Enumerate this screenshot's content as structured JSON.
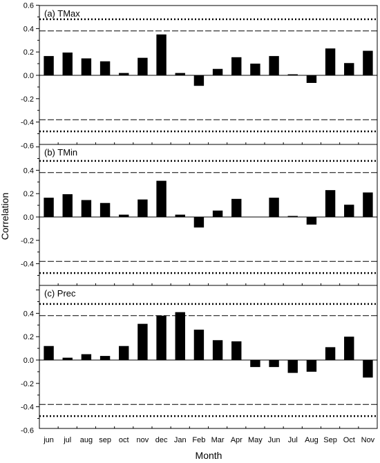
{
  "chart_data": [
    {
      "type": "bar",
      "title": "(a) TMax",
      "categories": [
        "jun",
        "jul",
        "aug",
        "sep",
        "oct",
        "nov",
        "dec",
        "Jan",
        "Feb",
        "Mar",
        "Apr",
        "May",
        "Jun",
        "Jul",
        "Aug",
        "Sep",
        "Oct",
        "Nov"
      ],
      "values": [
        0.165,
        0.195,
        0.145,
        0.12,
        0.02,
        0.15,
        0.35,
        0.02,
        -0.09,
        0.055,
        0.155,
        0.1,
        0.165,
        0.005,
        -0.065,
        0.23,
        0.105,
        0.21
      ],
      "ylim": [
        -0.6,
        0.6
      ],
      "yticks": [
        "-0.6",
        "-0.4",
        "-0.2",
        "0.0",
        "0.2",
        "0.4",
        "0.6"
      ],
      "reference_lines": {
        "dashed": [
          0.38,
          -0.38
        ],
        "dotted": [
          0.48,
          -0.48
        ]
      }
    },
    {
      "type": "bar",
      "title": "(b) TMin",
      "categories": [
        "jun",
        "jul",
        "aug",
        "sep",
        "oct",
        "nov",
        "dec",
        "Jan",
        "Feb",
        "Mar",
        "Apr",
        "May",
        "Jun",
        "Jul",
        "Aug",
        "Sep",
        "Oct",
        "Nov"
      ],
      "values": [
        0.165,
        0.195,
        0.145,
        0.12,
        0.02,
        0.15,
        0.31,
        0.02,
        -0.09,
        0.055,
        0.155,
        0.0,
        0.165,
        0.005,
        -0.065,
        0.23,
        0.105,
        0.21
      ],
      "ylim": [
        -0.6,
        0.6
      ],
      "yticks": [
        "-0.4",
        "-0.2",
        "0.0",
        "0.2",
        "0.4"
      ],
      "reference_lines": {
        "dashed": [
          0.38,
          -0.38
        ],
        "dotted": [
          0.48,
          -0.48
        ]
      }
    },
    {
      "type": "bar",
      "title": "(c) Prec",
      "categories": [
        "jun",
        "jul",
        "aug",
        "sep",
        "oct",
        "nov",
        "dec",
        "Jan",
        "Feb",
        "Mar",
        "Apr",
        "May",
        "Jun",
        "Jul",
        "Aug",
        "Sep",
        "Oct",
        "Nov"
      ],
      "values": [
        0.12,
        0.02,
        0.05,
        0.035,
        0.12,
        0.31,
        0.38,
        0.41,
        0.26,
        0.17,
        0.16,
        -0.06,
        -0.06,
        -0.11,
        -0.1,
        0.11,
        0.2,
        -0.15
      ],
      "ylim": [
        -0.6,
        0.6
      ],
      "yticks": [
        "-0.6",
        "-0.4",
        "-0.2",
        "0.0",
        "0.2",
        "0.4"
      ],
      "reference_lines": {
        "dashed": [
          0.38,
          -0.38
        ],
        "dotted": [
          0.48,
          -0.48
        ]
      }
    }
  ],
  "axes": {
    "xlabel": "Month",
    "ylabel": "Correlation",
    "xtick_labels": [
      "jun",
      "jul",
      "aug",
      "sep",
      "oct",
      "nov",
      "dec",
      "Jan",
      "Feb",
      "Mar",
      "Apr",
      "May",
      "Jun",
      "Jul",
      "Aug",
      "Sep",
      "Oct",
      "Nov"
    ]
  },
  "colors": {
    "bar": "#000000",
    "axis": "#000000",
    "background": "#ffffff"
  }
}
